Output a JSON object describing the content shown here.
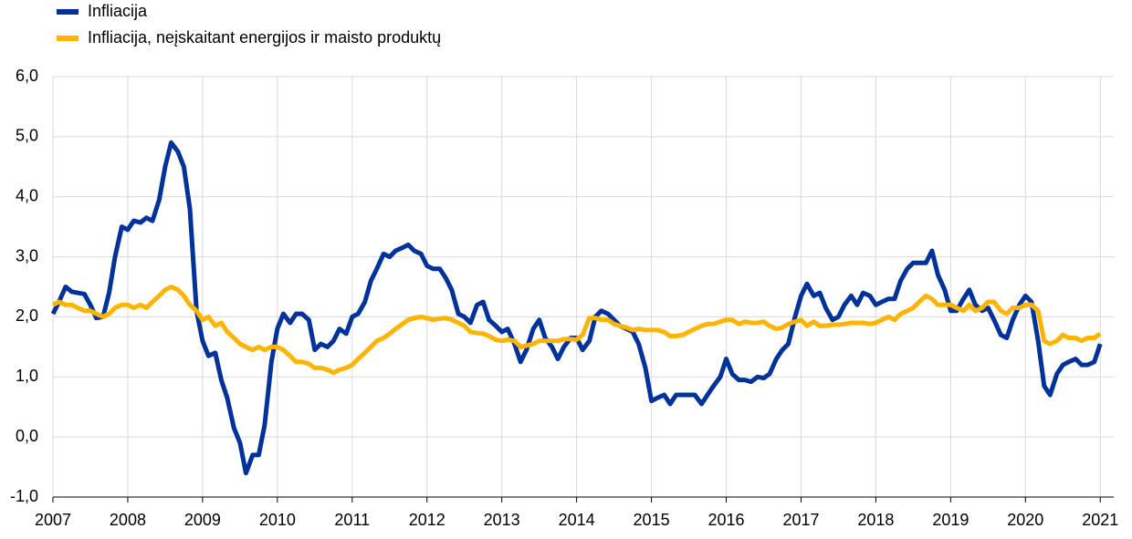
{
  "chart_data": {
    "type": "line",
    "x": [
      2007.0,
      2007.08,
      2007.17,
      2007.25,
      2007.33,
      2007.42,
      2007.5,
      2007.58,
      2007.67,
      2007.75,
      2007.83,
      2007.92,
      2008.0,
      2008.08,
      2008.17,
      2008.25,
      2008.33,
      2008.42,
      2008.5,
      2008.58,
      2008.67,
      2008.75,
      2008.83,
      2008.92,
      2009.0,
      2009.08,
      2009.17,
      2009.25,
      2009.33,
      2009.42,
      2009.5,
      2009.58,
      2009.67,
      2009.75,
      2009.83,
      2009.92,
      2010.0,
      2010.08,
      2010.17,
      2010.25,
      2010.33,
      2010.42,
      2010.5,
      2010.58,
      2010.67,
      2010.75,
      2010.83,
      2010.92,
      2011.0,
      2011.08,
      2011.17,
      2011.25,
      2011.33,
      2011.42,
      2011.5,
      2011.58,
      2011.67,
      2011.75,
      2011.83,
      2011.92,
      2012.0,
      2012.08,
      2012.17,
      2012.25,
      2012.33,
      2012.42,
      2012.5,
      2012.58,
      2012.67,
      2012.75,
      2012.83,
      2012.92,
      2013.0,
      2013.08,
      2013.17,
      2013.25,
      2013.33,
      2013.42,
      2013.5,
      2013.58,
      2013.67,
      2013.75,
      2013.83,
      2013.92,
      2014.0,
      2014.08,
      2014.17,
      2014.25,
      2014.33,
      2014.42,
      2014.5,
      2014.58,
      2014.67,
      2014.75,
      2014.83,
      2014.92,
      2015.0,
      2015.08,
      2015.17,
      2015.25,
      2015.33,
      2015.42,
      2015.5,
      2015.58,
      2015.67,
      2015.75,
      2015.83,
      2015.92,
      2016.0,
      2016.08,
      2016.17,
      2016.25,
      2016.33,
      2016.42,
      2016.5,
      2016.58,
      2016.67,
      2016.75,
      2016.83,
      2016.92,
      2017.0,
      2017.08,
      2017.17,
      2017.25,
      2017.33,
      2017.42,
      2017.5,
      2017.58,
      2017.67,
      2017.75,
      2017.83,
      2017.92,
      2018.0,
      2018.08,
      2018.17,
      2018.25,
      2018.33,
      2018.42,
      2018.5,
      2018.58,
      2018.67,
      2018.75,
      2018.83,
      2018.92,
      2019.0,
      2019.08,
      2019.17,
      2019.25,
      2019.33,
      2019.42,
      2019.5,
      2019.58,
      2019.67,
      2019.75,
      2019.83,
      2019.92,
      2020.0,
      2020.08,
      2020.17,
      2020.25,
      2020.33,
      2020.42,
      2020.5,
      2020.58,
      2020.67,
      2020.75,
      2020.83,
      2020.92,
      2021.0
    ],
    "series": [
      {
        "name": "Infliacija",
        "color": "#003299",
        "values": [
          2.05,
          2.25,
          2.5,
          2.42,
          2.4,
          2.38,
          2.2,
          1.98,
          2.0,
          2.4,
          3.0,
          3.5,
          3.45,
          3.6,
          3.57,
          3.65,
          3.6,
          3.95,
          4.5,
          4.9,
          4.75,
          4.5,
          3.8,
          2.1,
          1.6,
          1.35,
          1.4,
          0.95,
          0.65,
          0.15,
          -0.1,
          -0.6,
          -0.3,
          -0.3,
          0.2,
          1.25,
          1.8,
          2.05,
          1.9,
          2.05,
          2.05,
          1.95,
          1.45,
          1.55,
          1.5,
          1.6,
          1.8,
          1.72,
          2.0,
          2.05,
          2.25,
          2.6,
          2.8,
          3.05,
          3.0,
          3.1,
          3.15,
          3.2,
          3.1,
          3.05,
          2.85,
          2.8,
          2.8,
          2.65,
          2.45,
          2.05,
          2.0,
          1.9,
          2.2,
          2.25,
          1.95,
          1.85,
          1.75,
          1.8,
          1.55,
          1.25,
          1.45,
          1.8,
          1.95,
          1.65,
          1.5,
          1.3,
          1.5,
          1.65,
          1.65,
          1.45,
          1.6,
          2.0,
          2.1,
          2.05,
          1.95,
          1.85,
          1.8,
          1.75,
          1.55,
          1.15,
          0.6,
          0.65,
          0.7,
          0.55,
          0.7,
          0.7,
          0.7,
          0.7,
          0.55,
          0.7,
          0.85,
          1.0,
          1.3,
          1.05,
          0.95,
          0.95,
          0.92,
          1.0,
          0.98,
          1.05,
          1.3,
          1.45,
          1.55,
          2.0,
          2.35,
          2.55,
          2.35,
          2.4,
          2.15,
          1.95,
          2.0,
          2.2,
          2.35,
          2.2,
          2.4,
          2.35,
          2.2,
          2.25,
          2.3,
          2.3,
          2.6,
          2.8,
          2.9,
          2.9,
          2.9,
          3.1,
          2.7,
          2.45,
          2.1,
          2.1,
          2.3,
          2.45,
          2.2,
          2.1,
          2.15,
          1.95,
          1.7,
          1.65,
          1.95,
          2.2,
          2.35,
          2.25,
          1.6,
          0.85,
          0.7,
          1.05,
          1.2,
          1.25,
          1.3,
          1.2,
          1.2,
          1.25,
          1.55
        ]
      },
      {
        "name": "Infliacija, neįskaitant energijos ir maisto produktų",
        "color": "#ffb400",
        "values": [
          2.2,
          2.25,
          2.2,
          2.2,
          2.15,
          2.1,
          2.1,
          2.05,
          2.0,
          2.05,
          2.15,
          2.2,
          2.2,
          2.15,
          2.2,
          2.15,
          2.25,
          2.35,
          2.45,
          2.5,
          2.45,
          2.35,
          2.2,
          2.1,
          1.95,
          2.0,
          1.85,
          1.9,
          1.75,
          1.65,
          1.55,
          1.5,
          1.45,
          1.5,
          1.45,
          1.5,
          1.5,
          1.45,
          1.35,
          1.25,
          1.25,
          1.22,
          1.15,
          1.15,
          1.12,
          1.07,
          1.12,
          1.15,
          1.2,
          1.3,
          1.4,
          1.5,
          1.6,
          1.65,
          1.72,
          1.8,
          1.88,
          1.95,
          1.98,
          2.0,
          1.98,
          1.95,
          1.97,
          1.98,
          1.95,
          1.9,
          1.85,
          1.75,
          1.73,
          1.72,
          1.68,
          1.62,
          1.6,
          1.62,
          1.6,
          1.5,
          1.52,
          1.55,
          1.6,
          1.6,
          1.6,
          1.6,
          1.63,
          1.63,
          1.62,
          1.7,
          1.98,
          1.98,
          1.95,
          1.95,
          1.88,
          1.85,
          1.82,
          1.78,
          1.8,
          1.78,
          1.78,
          1.78,
          1.75,
          1.68,
          1.68,
          1.7,
          1.75,
          1.8,
          1.85,
          1.88,
          1.88,
          1.92,
          1.95,
          1.95,
          1.88,
          1.92,
          1.9,
          1.9,
          1.92,
          1.85,
          1.8,
          1.82,
          1.88,
          1.92,
          1.95,
          1.85,
          1.92,
          1.85,
          1.85,
          1.87,
          1.87,
          1.88,
          1.9,
          1.9,
          1.9,
          1.88,
          1.9,
          1.95,
          2.0,
          1.95,
          2.05,
          2.1,
          2.15,
          2.25,
          2.35,
          2.3,
          2.2,
          2.2,
          2.2,
          2.15,
          2.1,
          2.2,
          2.1,
          2.15,
          2.25,
          2.25,
          2.1,
          2.05,
          2.15,
          2.15,
          2.2,
          2.2,
          2.1,
          1.6,
          1.55,
          1.6,
          1.7,
          1.65,
          1.65,
          1.6,
          1.65,
          1.65,
          1.72
        ]
      }
    ],
    "xlim": [
      2007,
      2021.18
    ],
    "xticks": [
      2007,
      2008,
      2009,
      2010,
      2011,
      2012,
      2013,
      2014,
      2015,
      2016,
      2017,
      2018,
      2019,
      2020,
      2021
    ],
    "ylim": [
      -1,
      6
    ],
    "yticks": [
      {
        "value": -1,
        "label": "-1,0"
      },
      {
        "value": 0,
        "label": "0,0"
      },
      {
        "value": 1,
        "label": "1,0"
      },
      {
        "value": 2,
        "label": "2,0"
      },
      {
        "value": 3,
        "label": "3,0"
      },
      {
        "value": 4,
        "label": "4,0"
      },
      {
        "value": 5,
        "label": "5,0"
      },
      {
        "value": 6,
        "label": "6,0"
      }
    ],
    "grid": true,
    "legend": "top-left"
  }
}
